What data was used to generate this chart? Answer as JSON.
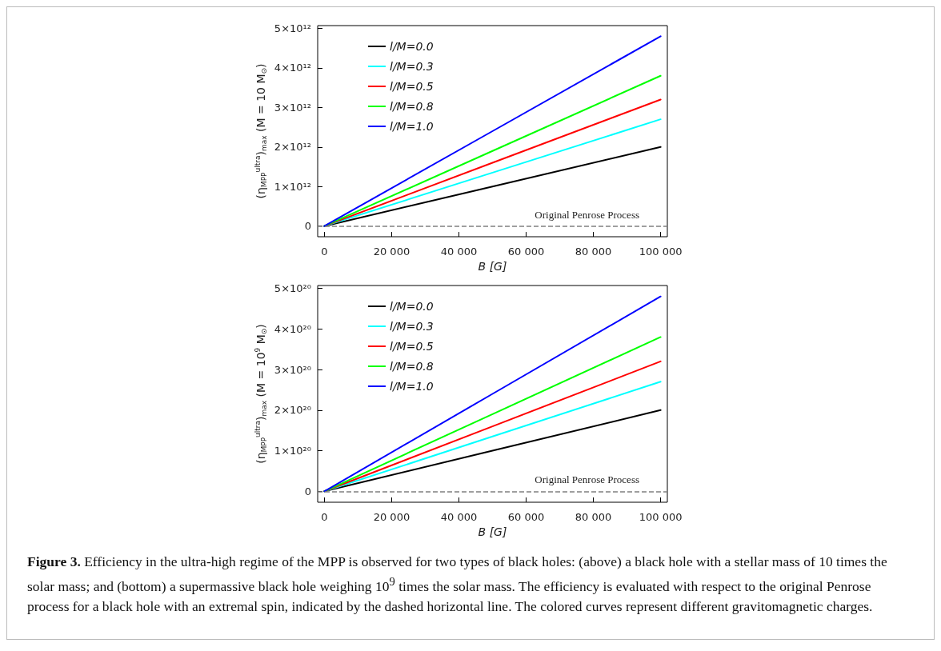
{
  "chart_data": [
    {
      "type": "line",
      "xlabel": "B [G]",
      "ylabel": "(η$_{MPP}$$^{ultra}$)$_{max}$ (M = 10 M$_{⊙}$)",
      "x": [
        0,
        50000,
        100000
      ],
      "series": [
        {
          "name": "l/M=0.0",
          "color": "#000000",
          "values": [
            0,
            1000000000000.0,
            2000000000000.0
          ]
        },
        {
          "name": "l/M=0.3",
          "color": "#00ffff",
          "values": [
            0,
            1350000000000.0,
            2700000000000.0
          ]
        },
        {
          "name": "l/M=0.5",
          "color": "#ff0000",
          "values": [
            0,
            1600000000000.0,
            3200000000000.0
          ]
        },
        {
          "name": "l/M=0.8",
          "color": "#00ff00",
          "values": [
            0,
            1900000000000.0,
            3800000000000.0
          ]
        },
        {
          "name": "l/M=1.0",
          "color": "#0000ff",
          "values": [
            0,
            2400000000000.0,
            4800000000000.0
          ]
        }
      ],
      "xlim": [
        -2000,
        102000
      ],
      "xticks": [
        0,
        {
          "value": 20000,
          "label": "20 000"
        },
        {
          "value": 40000,
          "label": "40 000"
        },
        {
          "value": 60000,
          "label": "60 000"
        },
        {
          "value": 80000,
          "label": "80 000"
        },
        {
          "value": 100000,
          "label": "100 000"
        }
      ],
      "ylim": [
        -270000000000.0,
        5070000000000.0
      ],
      "yticks": [
        0,
        {
          "value": 1000000000000.0,
          "label": "1×10¹²"
        },
        {
          "value": 2000000000000.0,
          "label": "2×10¹²"
        },
        {
          "value": 3000000000000.0,
          "label": "3×10¹²"
        },
        {
          "value": 4000000000000.0,
          "label": "4×10¹²"
        },
        {
          "value": 5000000000000.0,
          "label": "5×10¹²"
        }
      ],
      "ref_lines": [
        {
          "axis": "y",
          "value": 0,
          "label": "Original Penrose Process",
          "color": "#808080",
          "line_style": "dashed"
        }
      ],
      "legend": "top left",
      "grid": false,
      "marker": "none",
      "line_style": "solid"
    },
    {
      "type": "line",
      "xlabel": "B [G]",
      "ylabel": "(η$_{MPP}$$^{ultra}$)$_{max}$ (M = 10$^{9}$ M$_{⊙}$)",
      "x": [
        0,
        50000,
        100000
      ],
      "series": [
        {
          "name": "l/M=0.0",
          "color": "#000000",
          "values": [
            0,
            1e+20,
            2e+20
          ]
        },
        {
          "name": "l/M=0.3",
          "color": "#00ffff",
          "values": [
            0,
            1.35e+20,
            2.7e+20
          ]
        },
        {
          "name": "l/M=0.5",
          "color": "#ff0000",
          "values": [
            0,
            1.6e+20,
            3.2e+20
          ]
        },
        {
          "name": "l/M=0.8",
          "color": "#00ff00",
          "values": [
            0,
            1.9e+20,
            3.8e+20
          ]
        },
        {
          "name": "l/M=1.0",
          "color": "#0000ff",
          "values": [
            0,
            2.4e+20,
            4.8e+20
          ]
        }
      ],
      "xlim": [
        -2000,
        102000
      ],
      "xticks": [
        0,
        {
          "value": 20000,
          "label": "20 000"
        },
        {
          "value": 40000,
          "label": "40 000"
        },
        {
          "value": 60000,
          "label": "60 000"
        },
        {
          "value": 80000,
          "label": "80 000"
        },
        {
          "value": 100000,
          "label": "100 000"
        }
      ],
      "ylim": [
        -2.7e+19,
        5.07e+20
      ],
      "yticks": [
        0,
        {
          "value": 1e+20,
          "label": "1×10²⁰"
        },
        {
          "value": 2e+20,
          "label": "2×10²⁰"
        },
        {
          "value": 3e+20,
          "label": "3×10²⁰"
        },
        {
          "value": 4e+20,
          "label": "4×10²⁰"
        },
        {
          "value": 5e+20,
          "label": "5×10²⁰"
        }
      ],
      "ref_lines": [
        {
          "axis": "y",
          "value": 0,
          "label": "Original Penrose Process",
          "color": "#808080",
          "line_style": "dashed"
        }
      ],
      "legend": "top left",
      "grid": false,
      "marker": "none",
      "line_style": "solid",
      "annotations": [
        "Figure 3. Efficiency in the ultra-high regime of the MPP is observed for two types of black holes: (above) a black hole with a stellar mass of 10 times the solar mass; and (bottom) a supermassive black hole weighing 10$^{9}$ times the solar mass. The efficiency is evaluated with respect to the original Penrose process for a black hole with an extremal spin, indicated by the dashed horizontal line. The colored curves represent different gravitomagnetic charges."
      ]
    }
  ]
}
